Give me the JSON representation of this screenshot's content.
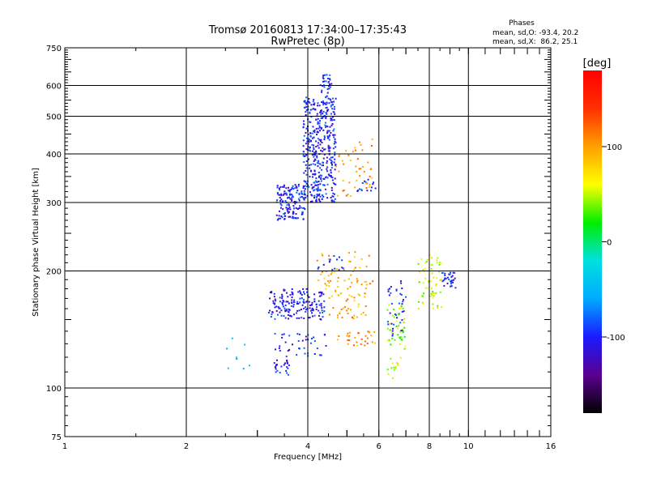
{
  "chart_data": {
    "type": "scatter",
    "title": "Tromsø 20160813 17:34:00–17:35:43",
    "subtitle": "RwPretec (8p)",
    "xlabel": "Frequency [MHz]",
    "ylabel": "Stationary phase Virtual Height [km]",
    "x_scale": "log",
    "y_scale": "log",
    "xlim": [
      1,
      16
    ],
    "ylim": [
      75,
      750
    ],
    "x_ticks": [
      1,
      2,
      4,
      6,
      8,
      10,
      16
    ],
    "y_ticks": [
      75,
      100,
      200,
      300,
      400,
      500,
      600,
      750
    ],
    "grid": true,
    "stats": {
      "heading": "Phases",
      "line_o": "mean, sd,O: -93.4, 20.2",
      "line_x": "mean, sd,X:  86.2, 25.1"
    },
    "colorbar": {
      "label": "[deg]",
      "range": [
        -180,
        180
      ],
      "ticks": [
        100,
        0,
        -100
      ],
      "colors": [
        "#000000",
        "#5a0090",
        "#1a1aff",
        "#00aaff",
        "#00e0e0",
        "#00ee00",
        "#ffff00",
        "#ffa000",
        "#ff3000",
        "#ff0000"
      ]
    },
    "series": [
      {
        "clusters": [
          {
            "x": [
              3.35,
              3.95
            ],
            "y": [
              270,
              335
            ],
            "phase": -100,
            "n": 150
          },
          {
            "x": [
              3.9,
              4.7
            ],
            "y": [
              300,
              560
            ],
            "phase": -100,
            "n": 430
          },
          {
            "x": [
              4.3,
              4.6
            ],
            "y": [
              560,
              640
            ],
            "phase": -100,
            "n": 30
          },
          {
            "x": [
              4.7,
              5.8
            ],
            "y": [
              310,
              440
            ],
            "phase": 105,
            "n": 45
          },
          {
            "x": [
              5.3,
              5.9
            ],
            "y": [
              320,
              345
            ],
            "phase": -100,
            "n": 15
          },
          {
            "x": [
              4.2,
              5.8
            ],
            "y": [
              185,
              225
            ],
            "phase": 95,
            "n": 40
          },
          {
            "x": [
              4.2,
              4.9
            ],
            "y": [
              200,
              220
            ],
            "phase": -100,
            "n": 15
          },
          {
            "x": [
              3.2,
              4.4
            ],
            "y": [
              150,
              180
            ],
            "phase": -105,
            "n": 170
          },
          {
            "x": [
              3.3,
              3.6
            ],
            "y": [
              108,
              118
            ],
            "phase": -105,
            "n": 25
          },
          {
            "x": [
              3.3,
              4.5
            ],
            "y": [
              120,
              140
            ],
            "phase": -105,
            "n": 40
          },
          {
            "x": [
              4.4,
              5.6
            ],
            "y": [
              150,
              190
            ],
            "phase": 100,
            "n": 60
          },
          {
            "x": [
              4.7,
              5.9
            ],
            "y": [
              128,
              140
            ],
            "phase": 100,
            "n": 30
          },
          {
            "x": [
              6.3,
              7.0
            ],
            "y": [
              135,
              190
            ],
            "phase": -105,
            "n": 40
          },
          {
            "x": [
              6.3,
              7.0
            ],
            "y": [
              125,
              165
            ],
            "phase": 40,
            "n": 45
          },
          {
            "x": [
              7.5,
              8.6
            ],
            "y": [
              160,
              220
            ],
            "phase": 55,
            "n": 60
          },
          {
            "x": [
              8.5,
              9.3
            ],
            "y": [
              180,
              200
            ],
            "phase": -105,
            "n": 30
          },
          {
            "x": [
              6.3,
              6.8
            ],
            "y": [
              105,
              120
            ],
            "phase": 60,
            "n": 15
          },
          {
            "x": [
              2.5,
              2.9
            ],
            "y": [
              112,
              135
            ],
            "phase": -60,
            "n": 8
          }
        ]
      }
    ]
  }
}
